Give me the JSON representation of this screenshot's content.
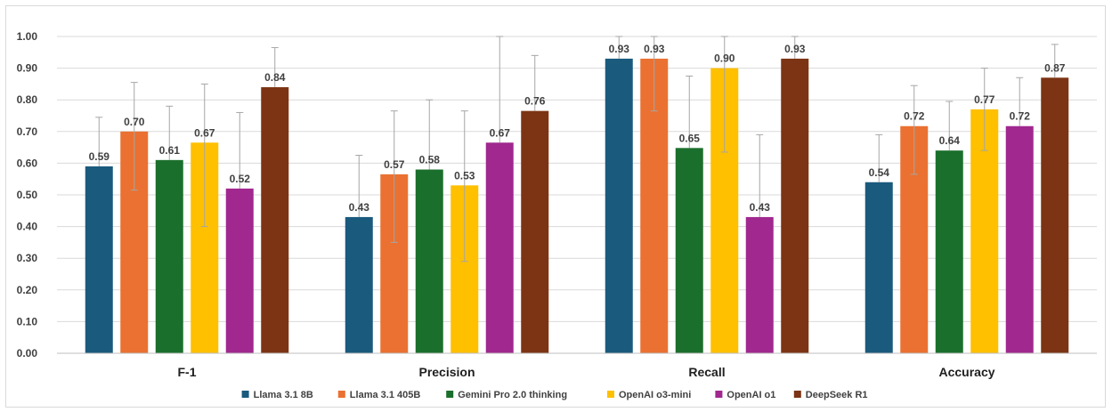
{
  "chart_data": {
    "type": "bar",
    "title": "",
    "xlabel": "",
    "ylabel": "",
    "ylim": [
      0,
      1
    ],
    "y_ticks": [
      "0.00",
      "0.10",
      "0.20",
      "0.30",
      "0.40",
      "0.50",
      "0.60",
      "0.70",
      "0.80",
      "0.90",
      "1.00"
    ],
    "grid": true,
    "legend_position": "bottom",
    "categories": [
      "F-1",
      "Precision",
      "Recall",
      "Accuracy"
    ],
    "series": [
      {
        "name": "Llama 3.1 8B",
        "color": "#1a5a7d",
        "values": [
          0.59,
          0.43,
          0.93,
          0.54
        ],
        "labels": [
          "0.59",
          "0.43",
          "0.93",
          "0.54"
        ],
        "err_low": [
          0.59,
          0.43,
          0.93,
          0.54
        ],
        "err_high": [
          0.745,
          0.625,
          1.0,
          0.69
        ]
      },
      {
        "name": "Llama 3.1 405B",
        "color": "#ea7131",
        "values": [
          0.7,
          0.565,
          0.93,
          0.717
        ],
        "labels": [
          "0.70",
          "0.57",
          "0.93",
          "0.72"
        ],
        "err_low": [
          0.515,
          0.35,
          0.765,
          0.565
        ],
        "err_high": [
          0.855,
          0.765,
          1.0,
          0.845
        ]
      },
      {
        "name": "Gemini Pro 2.0 thinking",
        "color": "#1b6f2c",
        "values": [
          0.61,
          0.58,
          0.648,
          0.64
        ],
        "labels": [
          "0.61",
          "0.58",
          "0.65",
          "0.64"
        ],
        "err_low": [
          0.61,
          0.58,
          0.648,
          0.64
        ],
        "err_high": [
          0.78,
          0.8,
          0.875,
          0.795
        ]
      },
      {
        "name": "OpenAI o3-mini",
        "color": "#ffc000",
        "values": [
          0.665,
          0.53,
          0.9,
          0.77
        ],
        "labels": [
          "0.67",
          "0.53",
          "0.90",
          "0.77"
        ],
        "err_low": [
          0.4,
          0.29,
          0.635,
          0.64
        ],
        "err_high": [
          0.85,
          0.765,
          1.0,
          0.9
        ]
      },
      {
        "name": "OpenAI o1",
        "color": "#a0288f",
        "values": [
          0.52,
          0.665,
          0.43,
          0.717
        ],
        "labels": [
          "0.52",
          "0.67",
          "0.43",
          "0.72"
        ],
        "err_low": [
          0.52,
          0.665,
          0.43,
          0.717
        ],
        "err_high": [
          0.76,
          1.0,
          0.69,
          0.87
        ]
      },
      {
        "name": "DeepSeek R1",
        "color": "#7c3414",
        "values": [
          0.84,
          0.765,
          0.93,
          0.87
        ],
        "labels": [
          "0.84",
          "0.76",
          "0.93",
          "0.87"
        ],
        "err_low": [
          0.84,
          0.765,
          0.93,
          0.87
        ],
        "err_high": [
          0.965,
          0.94,
          1.0,
          0.975
        ]
      }
    ]
  }
}
